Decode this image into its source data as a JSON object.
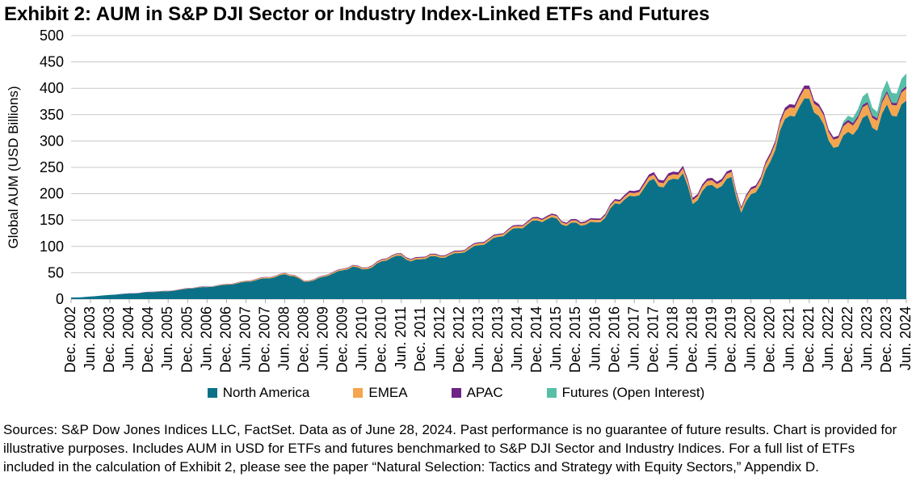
{
  "footer": {
    "text": "Sources: S&P Dow Jones Indices LLC, FactSet. Data as of June 28, 2024. Past performance is no guarantee of future results. Chart is provided for illustrative purposes. Includes AUM in USD for ETFs and futures benchmarked to S&P DJI Sector and Industry Indices. For a full list of ETFs included in the calculation of Exhibit 2, please see the paper “Natural Selection: Tactics and Strategy with Equity Sectors,” Appendix D."
  },
  "chart_data": {
    "type": "area",
    "stacked": true,
    "title": "Exhibit 2: AUM in S&P DJI Sector or Industry Index-Linked ETFs and Futures",
    "xlabel": "",
    "ylabel": "Global AUM (USD Billions)",
    "ylim": [
      0,
      500
    ],
    "ytick_step": 50,
    "ytick_labels": [
      "0",
      "50",
      "100",
      "150",
      "200",
      "250",
      "300",
      "350",
      "400",
      "450",
      "500"
    ],
    "grid": "horizontal",
    "legend_position": "bottom",
    "x_note": "quarterly estimates Dec 2002 - Jun 2024; axis labeled every 6 months",
    "x_tick_labels": [
      "Dec. 2002",
      "Jun. 2003",
      "Dec. 2003",
      "Jun. 2004",
      "Dec. 2004",
      "Jun. 2005",
      "Dec. 2005",
      "Jun. 2006",
      "Dec. 2006",
      "Jun. 2007",
      "Dec. 2007",
      "Jun. 2008",
      "Dec. 2008",
      "Jun. 2009",
      "Dec. 2009",
      "Jun. 2010",
      "Dec. 2010",
      "Jun. 2011",
      "Dec. 2011",
      "Jun. 2012",
      "Dec. 2012",
      "Jun. 2013",
      "Dec. 2013",
      "Jun. 2014",
      "Dec. 2014",
      "Jun. 2015",
      "Dec. 2015",
      "Jun. 2016",
      "Dec. 2016",
      "Jun. 2017",
      "Dec. 2017",
      "Jun. 2018",
      "Dec. 2018",
      "Jun. 2019",
      "Dec. 2019",
      "Jun. 2020",
      "Dec. 2020",
      "Jun. 2021",
      "Dec. 2021",
      "Jun. 2022",
      "Dec. 2022",
      "Jun. 2023",
      "Dec. 2023",
      "Jun. 2024"
    ],
    "series": [
      {
        "name": "North America",
        "color": "#0B7189",
        "values": [
          3,
          3.5,
          5,
          6.5,
          8,
          9.2,
          10.6,
          11.3,
          13.2,
          14.1,
          15.1,
          17,
          20,
          21.9,
          22.8,
          24.7,
          27.5,
          29.3,
          33.1,
          35.8,
          39.6,
          41.4,
          47.4,
          43.4,
          33,
          35.8,
          42.4,
          49,
          54.8,
          61.6,
          56.6,
          60.3,
          72,
          78.6,
          82.5,
          71.8,
          75.6,
          81.5,
          78.5,
          83.5,
          87.2,
          94.8,
          102.5,
          109.4,
          118.2,
          127,
          134.8,
          141.8,
          149.4,
          151.3,
          153.1,
          138.6,
          145.3,
          141.2,
          145.8,
          154.4,
          181.8,
          188.9,
          195,
          210.6,
          228,
          212,
          228.5,
          239,
          180.3,
          205.1,
          216.5,
          214.5,
          231.9,
          163.9,
          199,
          217.6,
          261,
          320.5,
          348,
          365,
          380.5,
          347.5,
          301,
          289.5,
          317.5,
          323.5,
          349.5,
          319.5,
          369.5,
          346.5,
          376.5
        ]
      },
      {
        "name": "EMEA",
        "color": "#F3A64F",
        "values": [
          0,
          0,
          0,
          0,
          0,
          0,
          0,
          0,
          0.3,
          0.4,
          0.4,
          0.5,
          0.5,
          0.6,
          0.7,
          0.8,
          1,
          1.2,
          1.4,
          1.6,
          1.8,
          2,
          2,
          2,
          1.5,
          1.6,
          1.8,
          2,
          2.2,
          2.4,
          2.4,
          2.5,
          2.8,
          3,
          3,
          2.8,
          3,
          3,
          3,
          3,
          3.2,
          3.4,
          3.5,
          3.6,
          3.8,
          4,
          4,
          4,
          4.2,
          4.2,
          4.4,
          4,
          4.2,
          4.2,
          4.4,
          4.6,
          5,
          5.5,
          6,
          7,
          8,
          8,
          8.5,
          9,
          7.5,
          8.5,
          9,
          9,
          9.5,
          7.5,
          9,
          10,
          12,
          14,
          16,
          17,
          18,
          17,
          16,
          16,
          18,
          19,
          20,
          19,
          21,
          21,
          23
        ]
      },
      {
        "name": "APAC",
        "color": "#6E2486",
        "values": [
          0,
          0,
          0,
          0,
          0,
          0.3,
          0.4,
          0.4,
          0.5,
          0.5,
          0.5,
          0.5,
          0.5,
          0.5,
          0.5,
          0.5,
          0.5,
          0.5,
          0.5,
          0.6,
          0.6,
          0.6,
          0.6,
          0.6,
          0.5,
          0.6,
          0.8,
          1,
          1,
          1,
          1,
          1.2,
          1.2,
          1.4,
          1.5,
          1.4,
          1.4,
          1.5,
          1.5,
          1.5,
          1.6,
          1.8,
          2,
          2,
          2,
          2,
          2.2,
          2.2,
          2.4,
          2.5,
          2.5,
          2.4,
          2.5,
          2.6,
          2.8,
          3,
          3.2,
          3.6,
          4,
          4.4,
          5,
          5,
          5,
          5,
          4.2,
          4.4,
          4.5,
          4.5,
          4.6,
          3.6,
          4,
          4.4,
          5,
          5.5,
          6,
          6,
          6.5,
          5.5,
          5,
          4.5,
          4.5,
          4.5,
          4.5,
          4.5,
          4.5,
          4.5,
          4.5
        ]
      },
      {
        "name": "Futures (Open Interest)",
        "color": "#58BFA7",
        "values": [
          0,
          0,
          0,
          0,
          0,
          0,
          0,
          0,
          0,
          0,
          0,
          0,
          0,
          0,
          0,
          0,
          0,
          0,
          0,
          0,
          0,
          0,
          0,
          0,
          0,
          0,
          0,
          0,
          0,
          0,
          0,
          0,
          0,
          0,
          0,
          0,
          0,
          0,
          0,
          0,
          0,
          0,
          0,
          0,
          0,
          0,
          0,
          0,
          0,
          0,
          0,
          0,
          0,
          0,
          0,
          0,
          0,
          0,
          0,
          0,
          0,
          0,
          0,
          0,
          0,
          0,
          0,
          0,
          0,
          0,
          0,
          0,
          0,
          0,
          0,
          0,
          0,
          0,
          0,
          0,
          8,
          13,
          18,
          12,
          20,
          18,
          24
        ]
      }
    ]
  }
}
